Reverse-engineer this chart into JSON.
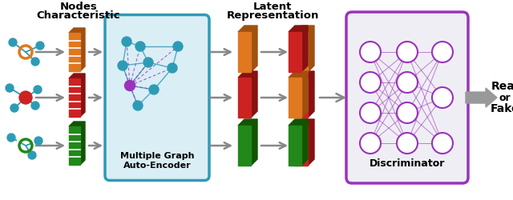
{
  "bg_color": "#ffffff",
  "teal": "#2E9BB5",
  "teal_dark": "#1A7A8A",
  "orange": "#E07820",
  "orange_dark": "#A05010",
  "red": "#CC2222",
  "red_dark": "#881111",
  "green": "#22881A",
  "green_dark": "#115500",
  "purple": "#9933BB",
  "purple_light": "#CC88DD",
  "gray_arrow": "#888888",
  "gray_light": "#aaaaaa",
  "mgae_bg": "#daeef5",
  "disc_bg": "#eeeeee",
  "nodes_title_line1": "Nodes",
  "nodes_title_line2": "Characteristic",
  "latent_title_line1": "Latent",
  "latent_title_line2": "Representation",
  "mgae_label_line1": "Multiple Graph",
  "mgae_label_line2": "Auto-Encoder",
  "disc_label": "Discriminator",
  "out_line1": "Real",
  "out_line2": "or",
  "out_line3": "Fake"
}
